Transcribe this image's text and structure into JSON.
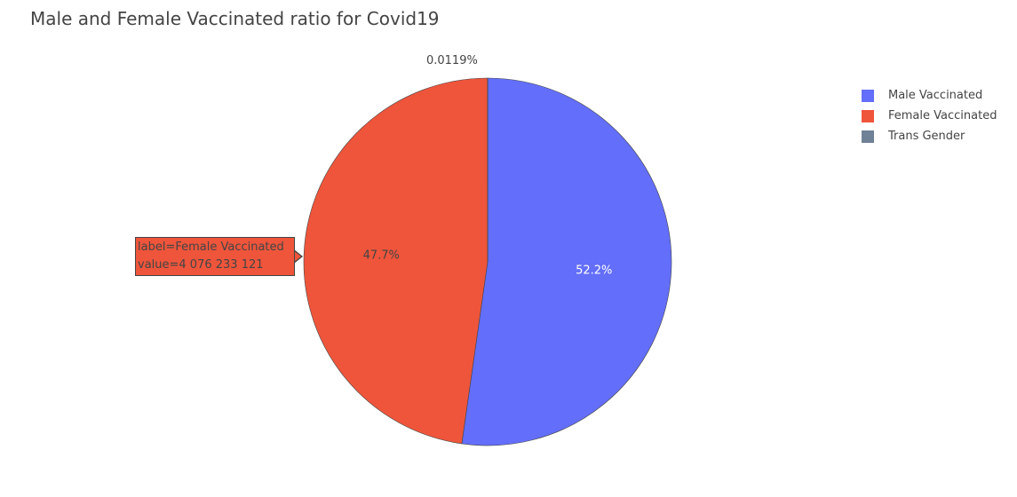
{
  "chart_data": {
    "type": "pie",
    "title": "Male and Female Vaccinated ratio for Covid19",
    "slices": [
      {
        "label": "Male Vaccinated",
        "percent": 52.2,
        "percent_text": "52.2%",
        "color": "#636efa",
        "text_color": "#ffffff"
      },
      {
        "label": "Female Vaccinated",
        "percent": 47.7,
        "percent_text": "47.7%",
        "color": "#ef553b",
        "text_color": "#444444"
      },
      {
        "label": "Trans Gender",
        "percent": 0.0119,
        "percent_text": "0.0119%",
        "color": "#6f8197",
        "text_color": "#444444"
      }
    ],
    "legend_position": "top-right"
  },
  "hover": {
    "line1": "label=Female Vaccinated",
    "line2": "value=4 076 233 121"
  }
}
